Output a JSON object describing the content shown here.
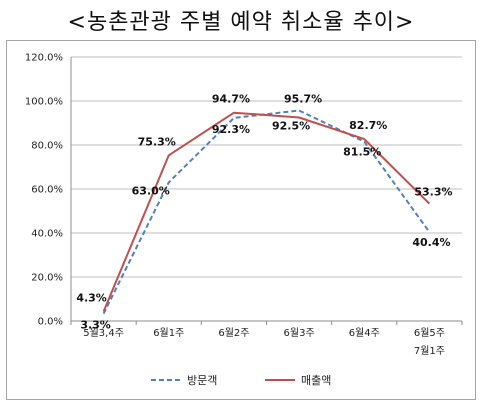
{
  "chart_data": {
    "type": "line",
    "title": "<농촌관광 주별 예약 취소율 추이>",
    "categories": [
      [
        "5월3,4주"
      ],
      [
        "6월1주"
      ],
      [
        "6월2주"
      ],
      [
        "6월3주"
      ],
      [
        "6월4주"
      ],
      [
        "6월5주",
        "7월1주"
      ]
    ],
    "series": [
      {
        "name": "방문객",
        "values": [
          3.3,
          63.0,
          92.3,
          95.7,
          81.5,
          40.4
        ],
        "labels": [
          "3.3%",
          "63.0%",
          "92.3%",
          "95.7%",
          "81.5%",
          "40.4%"
        ],
        "color": "#4f81bd",
        "style": "dashed"
      },
      {
        "name": "매출액",
        "values": [
          4.3,
          75.3,
          94.7,
          92.5,
          82.7,
          53.3
        ],
        "labels": [
          "4.3%",
          "75.3%",
          "94.7%",
          "92.5%",
          "82.7%",
          "53.3%"
        ],
        "color": "#c0504d",
        "style": "solid"
      }
    ],
    "ylim": [
      0,
      120
    ],
    "yticks": [
      "0.0%",
      "20.0%",
      "40.0%",
      "60.0%",
      "80.0%",
      "100.0%",
      "120.0%"
    ],
    "grid": true,
    "legend": "bottom"
  }
}
